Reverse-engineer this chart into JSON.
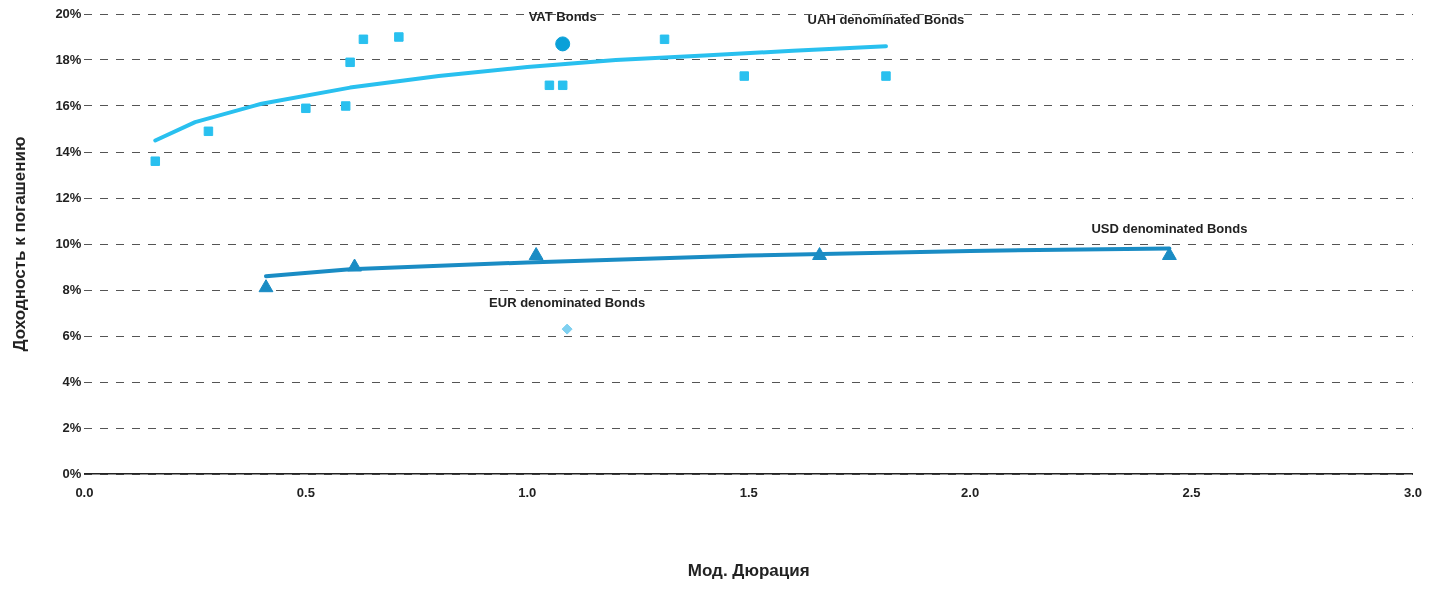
{
  "chart_data": {
    "type": "scatter",
    "xlabel": "Мод. Дюрация",
    "ylabel": "Доходность к погашению",
    "xlim": [
      0,
      3
    ],
    "xticks": [
      {
        "value": 0,
        "label": "0.0"
      },
      {
        "value": 0.5,
        "label": "0.5"
      },
      {
        "value": 1,
        "label": "1.0"
      },
      {
        "value": 1.5,
        "label": "1.5"
      },
      {
        "value": 2,
        "label": "2.0"
      },
      {
        "value": 2.5,
        "label": "2.5"
      },
      {
        "value": 3,
        "label": "3.0"
      }
    ],
    "ylim": [
      0,
      20
    ],
    "yticks": [
      {
        "value": 0,
        "label": "0%"
      },
      {
        "value": 2,
        "label": "2%"
      },
      {
        "value": 4,
        "label": "4%"
      },
      {
        "value": 6,
        "label": "6%"
      },
      {
        "value": 8,
        "label": "8%"
      },
      {
        "value": 10,
        "label": "10%"
      },
      {
        "value": 12,
        "label": "12%"
      },
      {
        "value": 14,
        "label": "14%"
      },
      {
        "value": 16,
        "label": "16%"
      },
      {
        "value": 18,
        "label": "18%"
      },
      {
        "value": 20,
        "label": "20%"
      }
    ],
    "grid": "y",
    "legend": false,
    "series": [
      {
        "type": "scatter",
        "marker": "square",
        "color": "#29c0ef",
        "x": [
          0.16,
          0.28,
          0.5,
          0.59,
          0.6,
          0.63,
          0.71,
          1.05,
          1.08,
          1.31,
          1.49,
          1.81
        ],
        "values": [
          13.6,
          14.9,
          15.9,
          16.0,
          17.9,
          18.9,
          19.0,
          16.9,
          16.9,
          18.9,
          17.3,
          17.3
        ]
      },
      {
        "type": "scatter",
        "marker": "circle",
        "color": "#0aa0d8",
        "x": [
          1.08
        ],
        "values": [
          18.7
        ]
      },
      {
        "type": "scatter",
        "marker": "triangle",
        "color": "#1a8cc4",
        "x": [
          0.41,
          0.61,
          1.02,
          1.66,
          2.45
        ],
        "values": [
          8.1,
          9.0,
          9.5,
          9.5,
          9.5
        ]
      },
      {
        "type": "scatter",
        "marker": "diamond",
        "color": "#7fd0f0",
        "x": [
          1.09
        ],
        "values": [
          6.3
        ]
      },
      {
        "type": "line",
        "marker": "none",
        "color": "#29c0ef",
        "x": [
          0.16,
          0.25,
          0.4,
          0.6,
          0.8,
          1.0,
          1.2,
          1.4,
          1.6,
          1.81
        ],
        "values": [
          14.5,
          15.3,
          16.1,
          16.8,
          17.3,
          17.7,
          18.0,
          18.2,
          18.4,
          18.6
        ]
      },
      {
        "type": "line",
        "marker": "none",
        "color": "#1a8cc4",
        "x": [
          0.41,
          0.6,
          1.0,
          1.5,
          2.0,
          2.45
        ],
        "values": [
          8.6,
          8.9,
          9.2,
          9.5,
          9.7,
          9.8
        ]
      }
    ],
    "annotations": [
      {
        "text": "VAT Bonds",
        "x": 1.08,
        "y": 18.7
      },
      {
        "text": "UAH denominated Bonds",
        "x": 1.81,
        "y": 18.6
      },
      {
        "text": "USD denominated Bonds",
        "x": 2.45,
        "y": 9.5
      },
      {
        "text": "EUR denominated Bonds",
        "x": 1.09,
        "y": 6.3
      }
    ]
  }
}
